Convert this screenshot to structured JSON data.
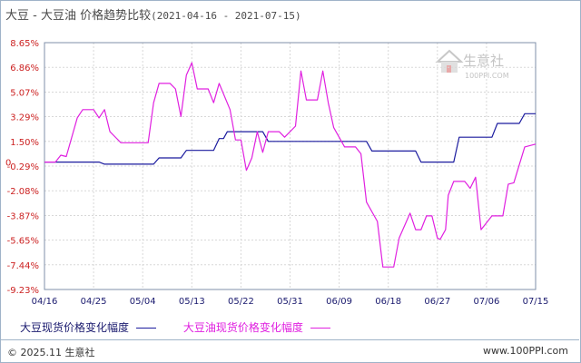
{
  "header": {
    "title": "大豆 - 大豆油 价格趋势比较",
    "date_range": "(2021-04-16 - 2021-07-15)"
  },
  "watermark": {
    "brand": "生意社",
    "url": "100PPI.COM",
    "icon": "house-logo-icon"
  },
  "footer": {
    "copyright": "© 2025.11 生意社",
    "site": "www.100PPI.com"
  },
  "legend": [
    {
      "label": "大豆现货价格变化幅度",
      "color": "#1a1a9e"
    },
    {
      "label": "大豆油现货价格变化幅度",
      "color": "#e020e0"
    }
  ],
  "chart_data": {
    "type": "line",
    "title": "大豆 - 大豆油 价格趋势比较",
    "ylim": [
      -9.23,
      8.65
    ],
    "ytick_values": [
      8.65,
      6.86,
      5.07,
      3.29,
      1.5,
      -0.29,
      -2.08,
      -3.87,
      -5.65,
      -7.44,
      -9.23
    ],
    "ytick_labels": [
      "8.65%",
      "6.86%",
      "5.07%",
      "3.29%",
      "1.50%",
      "-0.29%",
      "-2.08%",
      "-3.87%",
      "-5.65%",
      "-7.44%",
      "-9.23%"
    ],
    "zero_label": "0",
    "xlim": [
      0,
      90
    ],
    "xtick_positions": [
      0,
      9,
      18,
      27,
      36,
      45,
      54,
      63,
      72,
      81,
      90
    ],
    "xtick_labels": [
      "04/16",
      "04/25",
      "05/04",
      "05/13",
      "05/22",
      "05/31",
      "06/09",
      "06/18",
      "06/27",
      "07/06",
      "07/15"
    ],
    "grid": true,
    "series": [
      {
        "name": "大豆现货价格变化幅度",
        "color": "#1a1a9e",
        "points": [
          [
            0,
            0
          ],
          [
            10,
            0
          ],
          [
            11,
            -0.15
          ],
          [
            20,
            -0.15
          ],
          [
            21,
            0.3
          ],
          [
            25,
            0.3
          ],
          [
            26,
            0.85
          ],
          [
            31,
            0.85
          ],
          [
            32,
            1.7
          ],
          [
            32.8,
            1.7
          ],
          [
            33.5,
            2.2
          ],
          [
            40,
            2.2
          ],
          [
            41,
            1.5
          ],
          [
            59,
            1.5
          ],
          [
            60,
            0.8
          ],
          [
            68,
            0.8
          ],
          [
            69,
            0
          ],
          [
            75,
            0
          ],
          [
            76,
            1.8
          ],
          [
            82,
            1.8
          ],
          [
            83,
            2.8
          ],
          [
            87,
            2.8
          ],
          [
            88,
            3.5
          ],
          [
            90,
            3.5
          ]
        ]
      },
      {
        "name": "大豆油现货价格变化幅度",
        "color": "#e020e0",
        "points": [
          [
            0,
            0
          ],
          [
            2,
            0
          ],
          [
            3,
            0.5
          ],
          [
            4,
            0.4
          ],
          [
            6,
            3.2
          ],
          [
            7,
            3.8
          ],
          [
            9,
            3.8
          ],
          [
            10,
            3.2
          ],
          [
            11,
            3.8
          ],
          [
            12,
            2.2
          ],
          [
            14,
            1.4
          ],
          [
            19,
            1.4
          ],
          [
            20,
            4.3
          ],
          [
            21,
            5.7
          ],
          [
            23,
            5.7
          ],
          [
            24,
            5.3
          ],
          [
            25,
            3.3
          ],
          [
            26,
            6.3
          ],
          [
            27,
            7.2
          ],
          [
            28,
            5.3
          ],
          [
            30,
            5.3
          ],
          [
            31,
            4.3
          ],
          [
            32,
            5.7
          ],
          [
            34,
            3.8
          ],
          [
            35,
            1.6
          ],
          [
            36,
            1.6
          ],
          [
            37,
            -0.6
          ],
          [
            38,
            0.3
          ],
          [
            39,
            2.2
          ],
          [
            40,
            0.7
          ],
          [
            41,
            2.2
          ],
          [
            43,
            2.2
          ],
          [
            44,
            1.8
          ],
          [
            46,
            2.6
          ],
          [
            47,
            6.6
          ],
          [
            48,
            4.5
          ],
          [
            50,
            4.5
          ],
          [
            51,
            6.6
          ],
          [
            52,
            4.3
          ],
          [
            53,
            2.5
          ],
          [
            55,
            1.1
          ],
          [
            57,
            1.1
          ],
          [
            58,
            0.6
          ],
          [
            59,
            -2.9
          ],
          [
            61,
            -4.3
          ],
          [
            62,
            -7.6
          ],
          [
            64,
            -7.6
          ],
          [
            65,
            -5.5
          ],
          [
            67,
            -3.7
          ],
          [
            68,
            -4.9
          ],
          [
            69,
            -4.9
          ],
          [
            70,
            -3.9
          ],
          [
            71,
            -3.9
          ],
          [
            72,
            -5.5
          ],
          [
            72.5,
            -5.6
          ],
          [
            73.5,
            -4.9
          ],
          [
            74,
            -2.4
          ],
          [
            75,
            -1.4
          ],
          [
            77,
            -1.4
          ],
          [
            78,
            -1.9
          ],
          [
            79,
            -1.1
          ],
          [
            80,
            -4.9
          ],
          [
            82,
            -3.9
          ],
          [
            84,
            -3.9
          ],
          [
            85,
            -1.6
          ],
          [
            86,
            -1.5
          ],
          [
            88,
            1.1
          ],
          [
            90,
            1.3
          ]
        ]
      }
    ]
  }
}
